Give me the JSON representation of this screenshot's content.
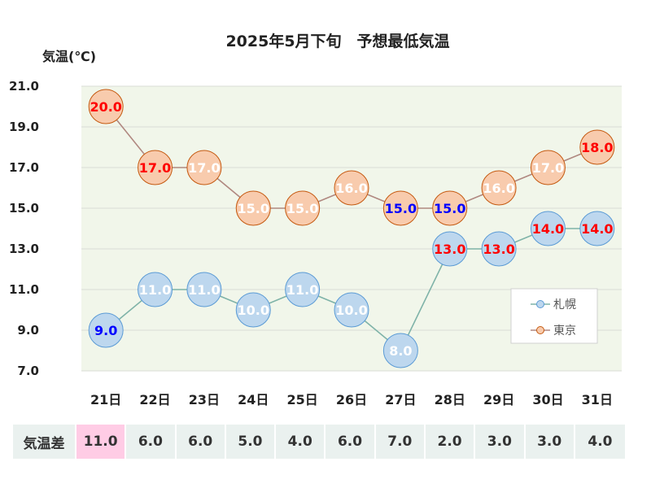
{
  "chart_data": {
    "type": "line",
    "title": "2025年5月下旬　予想最低気温",
    "ylabel": "気温(℃)",
    "ylim": [
      7.0,
      21.0
    ],
    "yticks": [
      "21.0",
      "19.0",
      "17.0",
      "15.0",
      "13.0",
      "11.0",
      "9.0",
      "7.0"
    ],
    "categories": [
      "21日",
      "22日",
      "23日",
      "24日",
      "25日",
      "26日",
      "27日",
      "28日",
      "29日",
      "30日",
      "31日"
    ],
    "series": [
      {
        "name": "札幌",
        "values": [
          9.0,
          11.0,
          11.0,
          10.0,
          11.0,
          10.0,
          8.0,
          13.0,
          13.0,
          14.0,
          14.0
        ],
        "labels": [
          "9.0",
          "11.0",
          "11.0",
          "10.0",
          "11.0",
          "10.0",
          "8.0",
          "13.0",
          "13.0",
          "14.0",
          "14.0"
        ],
        "label_colors": [
          "#0000ff",
          "#ffffff",
          "#ffffff",
          "#ffffff",
          "#ffffff",
          "#ffffff",
          "#ffffff",
          "#ff0000",
          "#ff0000",
          "#ff0000",
          "#ff0000"
        ],
        "marker_fill": "#bdd7ee",
        "marker_stroke": "#5b9bd5",
        "line_color": "#7fb3a8"
      },
      {
        "name": "東京",
        "values": [
          20.0,
          17.0,
          17.0,
          15.0,
          15.0,
          16.0,
          15.0,
          15.0,
          16.0,
          17.0,
          18.0
        ],
        "labels": [
          "20.0",
          "17.0",
          "17.0",
          "15.0",
          "15.0",
          "16.0",
          "15.0",
          "15.0",
          "16.0",
          "17.0",
          "18.0"
        ],
        "label_colors": [
          "#ff0000",
          "#ff0000",
          "#ffffff",
          "#ffffff",
          "#ffffff",
          "#ffffff",
          "#0000ff",
          "#0000ff",
          "#ffffff",
          "#ffffff",
          "#ff0000"
        ],
        "marker_fill": "#f8cbad",
        "marker_stroke": "#c55a11",
        "line_color": "#b08880"
      }
    ],
    "legend": {
      "position": "right-inside",
      "entries": [
        "札幌",
        "東京"
      ]
    },
    "grid": true,
    "plot_background": "#f1f6ea"
  },
  "diff_table": {
    "header": "気温差",
    "values": [
      "11.0",
      "6.0",
      "6.0",
      "5.0",
      "4.0",
      "6.0",
      "7.0",
      "2.0",
      "3.0",
      "3.0",
      "4.0"
    ],
    "highlight_index": 0,
    "highlight_color": "#ffcce5"
  }
}
